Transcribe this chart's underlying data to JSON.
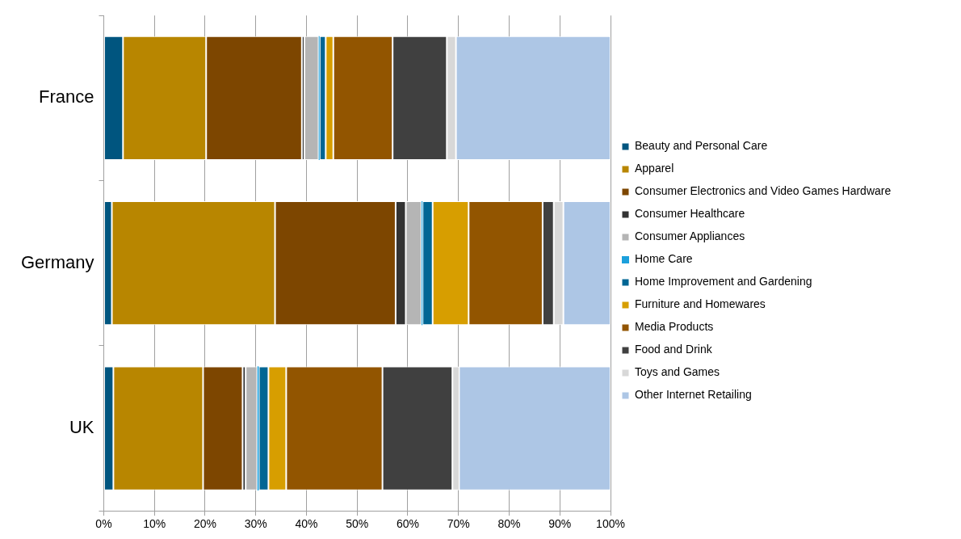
{
  "chart_data": {
    "type": "bar",
    "orientation": "horizontal",
    "stacked": true,
    "categories": [
      "France",
      "Germany",
      "UK"
    ],
    "series": [
      {
        "name": "Beauty and Personal Care",
        "color": "#00557f",
        "values": [
          3.8,
          1.6,
          1.9
        ]
      },
      {
        "name": "Apparel",
        "color": "#b88600",
        "values": [
          16.4,
          32.2,
          17.7
        ]
      },
      {
        "name": "Consumer Electronics and Video Games Hardware",
        "color": "#7d4600",
        "values": [
          18.9,
          23.8,
          7.8
        ]
      },
      {
        "name": "Consumer Healthcare",
        "color": "#333333",
        "values": [
          0.5,
          2.0,
          0.6
        ]
      },
      {
        "name": "Consumer Appliances",
        "color": "#b5b5b5",
        "values": [
          2.8,
          3.1,
          2.3
        ]
      },
      {
        "name": "Home Care",
        "color": "#1ca0dc",
        "values": [
          0.2,
          0.2,
          0.3
        ]
      },
      {
        "name": "Home Improvement and Gardening",
        "color": "#006694",
        "values": [
          1.2,
          2.0,
          1.9
        ]
      },
      {
        "name": "Furniture and Homewares",
        "color": "#d79e00",
        "values": [
          1.5,
          7.1,
          3.5
        ]
      },
      {
        "name": "Media Products",
        "color": "#925500",
        "values": [
          11.7,
          14.6,
          19.0
        ]
      },
      {
        "name": "Food and Drink",
        "color": "#404040",
        "values": [
          10.7,
          2.2,
          13.8
        ]
      },
      {
        "name": "Toys and Games",
        "color": "#d8d8d8",
        "values": [
          1.8,
          1.9,
          1.3
        ]
      },
      {
        "name": "Other Internet Retailing",
        "color": "#adc6e5",
        "values": [
          30.5,
          9.3,
          29.9
        ]
      }
    ],
    "xlim": [
      0,
      100
    ],
    "xticks": [
      {
        "value": 0,
        "label": "0%"
      },
      {
        "value": 10,
        "label": "10%"
      },
      {
        "value": 20,
        "label": "20%"
      },
      {
        "value": 30,
        "label": "30%"
      },
      {
        "value": 40,
        "label": "40%"
      },
      {
        "value": 50,
        "label": "50%"
      },
      {
        "value": 60,
        "label": "60%"
      },
      {
        "value": 70,
        "label": "70%"
      },
      {
        "value": 80,
        "label": "80%"
      },
      {
        "value": 90,
        "label": "90%"
      },
      {
        "value": 100,
        "label": "100%"
      }
    ],
    "grid": "x",
    "legend": "right"
  }
}
